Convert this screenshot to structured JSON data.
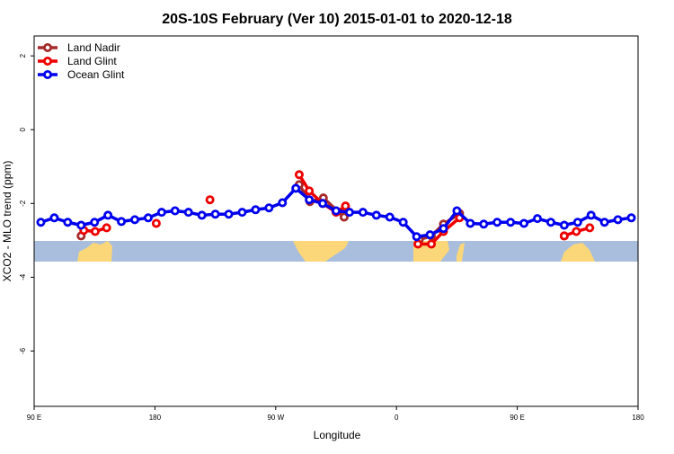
{
  "chart_data": {
    "type": "line",
    "title": "20S-10S February (Ver 10)   2015-01-01 to 2020-12-18",
    "xlabel": "Longitude",
    "ylabel": "XCO2 - MLO trend (ppm)",
    "xlim": [
      90,
      540
    ],
    "ylim": [
      -7.5,
      2.54
    ],
    "xticks": [
      {
        "value": 90,
        "label": "90 E"
      },
      180,
      {
        "value": 270,
        "label": "90 W"
      },
      {
        "value": 360,
        "label": "0"
      },
      {
        "value": 450,
        "label": "90 E"
      },
      {
        "value": 540,
        "label": "180"
      }
    ],
    "yticks": [
      2,
      0,
      -2,
      -4,
      -6
    ],
    "legend": "top-left",
    "series": [
      {
        "name": "Land Nadir",
        "color": "#a52a2a",
        "x": [
          125,
          null,
          287.5,
          295.5,
          305.5,
          321,
          null,
          377,
          386,
          395,
          407,
          null,
          485
        ],
        "values": [
          -2.88,
          null,
          -1.49,
          -1.95,
          -1.85,
          -2.37,
          null,
          -2.98,
          -2.88,
          -2.56,
          -2.27,
          null,
          -2.88
        ]
      },
      {
        "name": "Land Glint",
        "color": "#ee0000",
        "x": [
          127,
          135.5,
          144,
          null,
          181,
          null,
          221,
          null,
          287.5,
          295,
          305,
          315,
          322,
          null,
          376,
          386,
          395,
          407,
          null,
          485,
          494,
          504
        ],
        "values": [
          -2.73,
          -2.76,
          -2.66,
          null,
          -2.54,
          null,
          -1.9,
          null,
          -1.22,
          -1.66,
          -2.0,
          -2.24,
          -2.07,
          null,
          -3.1,
          -3.1,
          -2.76,
          -2.39,
          null,
          -2.88,
          -2.76,
          -2.66
        ]
      },
      {
        "name": "Ocean Glint",
        "color": "#0000ee",
        "x": [
          95,
          105,
          115,
          125,
          135,
          145,
          155,
          165,
          175,
          185,
          195,
          205,
          215,
          225,
          235,
          245,
          255,
          265,
          275,
          285,
          295,
          305,
          315,
          325,
          335,
          345,
          355,
          365,
          375,
          385,
          395,
          405,
          415,
          425,
          435,
          445,
          455,
          465,
          475,
          485,
          495,
          505,
          515,
          525,
          535
        ],
        "values": [
          -2.51,
          -2.39,
          -2.51,
          -2.59,
          -2.51,
          -2.32,
          -2.49,
          -2.44,
          -2.39,
          -2.24,
          -2.2,
          -2.24,
          -2.32,
          -2.29,
          -2.29,
          -2.24,
          -2.17,
          -2.12,
          -1.98,
          -1.59,
          -1.9,
          -2.0,
          -2.2,
          -2.24,
          -2.24,
          -2.32,
          -2.37,
          -2.51,
          -2.9,
          -2.85,
          -2.68,
          -2.2,
          -2.54,
          -2.56,
          -2.51,
          -2.51,
          -2.54,
          -2.41,
          -2.51,
          -2.59,
          -2.51,
          -2.32,
          -2.51,
          -2.44,
          -2.39
        ]
      }
    ]
  }
}
